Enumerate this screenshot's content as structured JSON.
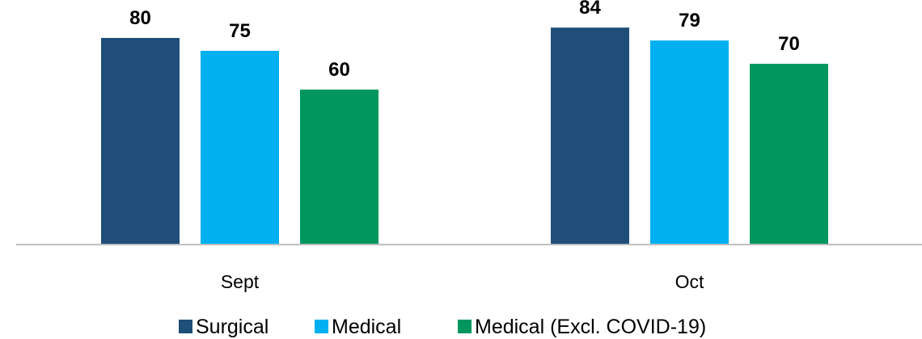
{
  "chart_data": {
    "type": "bar",
    "categories": [
      "Sept",
      "Oct"
    ],
    "series": [
      {
        "name": "Surgical",
        "values": [
          80,
          84
        ],
        "color": "#1f4e79"
      },
      {
        "name": "Medical",
        "values": [
          75,
          79
        ],
        "color": "#00b0f0"
      },
      {
        "name": "Medical (Excl. COVID-19)",
        "values": [
          60,
          70
        ],
        "color": "#00965e"
      }
    ],
    "title": "",
    "xlabel": "",
    "ylabel": "",
    "ylim": [
      0,
      90
    ],
    "grid": false,
    "legend": "bottom",
    "data_labels": true
  }
}
